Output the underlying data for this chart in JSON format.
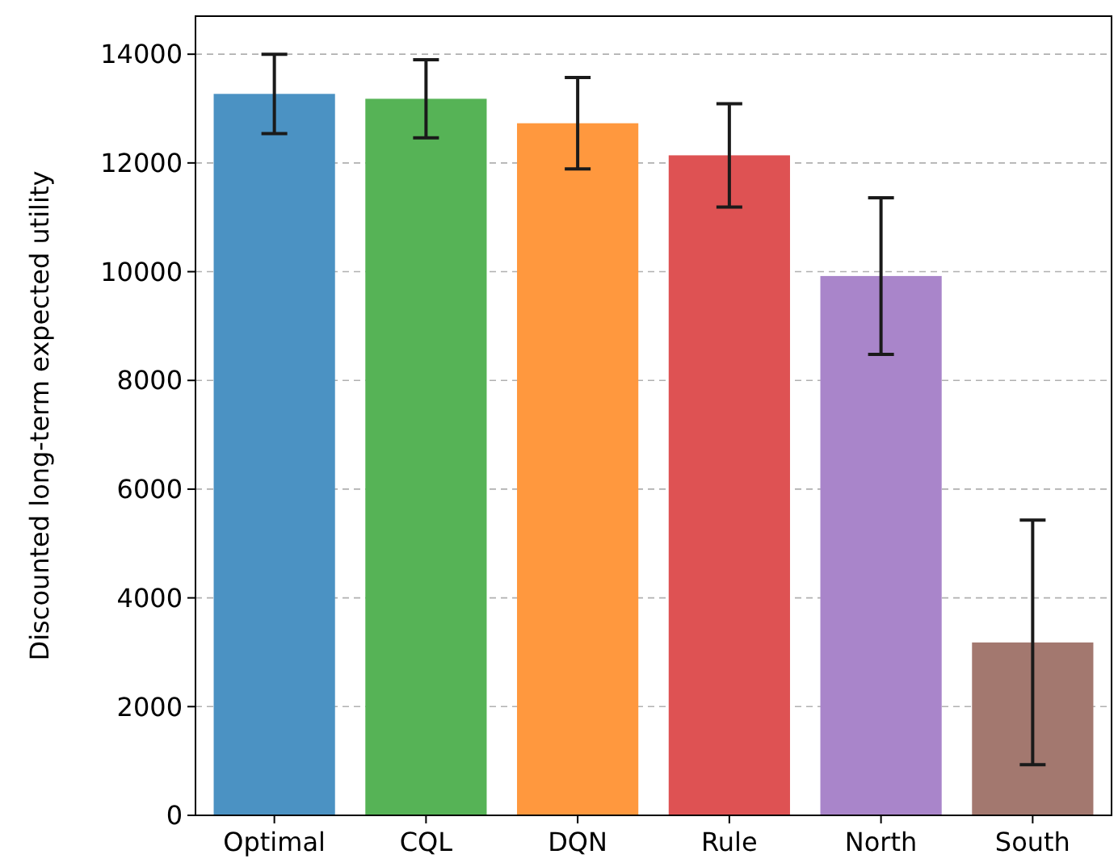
{
  "chart_data": {
    "type": "bar",
    "ylabel": "Discounted long-term expected utility",
    "categories": [
      "Optimal",
      "CQL",
      "DQN",
      "Rule",
      "North",
      "South"
    ],
    "values": [
      13270,
      13180,
      12730,
      12140,
      9920,
      3180
    ],
    "errors": [
      730,
      720,
      840,
      950,
      1440,
      2250
    ],
    "colors": [
      "#4b92c3",
      "#56b356",
      "#ff983e",
      "#de5253",
      "#a985ca",
      "#a3786f"
    ],
    "ylim": [
      0,
      14700
    ],
    "yticks": [
      0,
      2000,
      4000,
      6000,
      8000,
      10000,
      12000,
      14000
    ],
    "grid": "y"
  }
}
